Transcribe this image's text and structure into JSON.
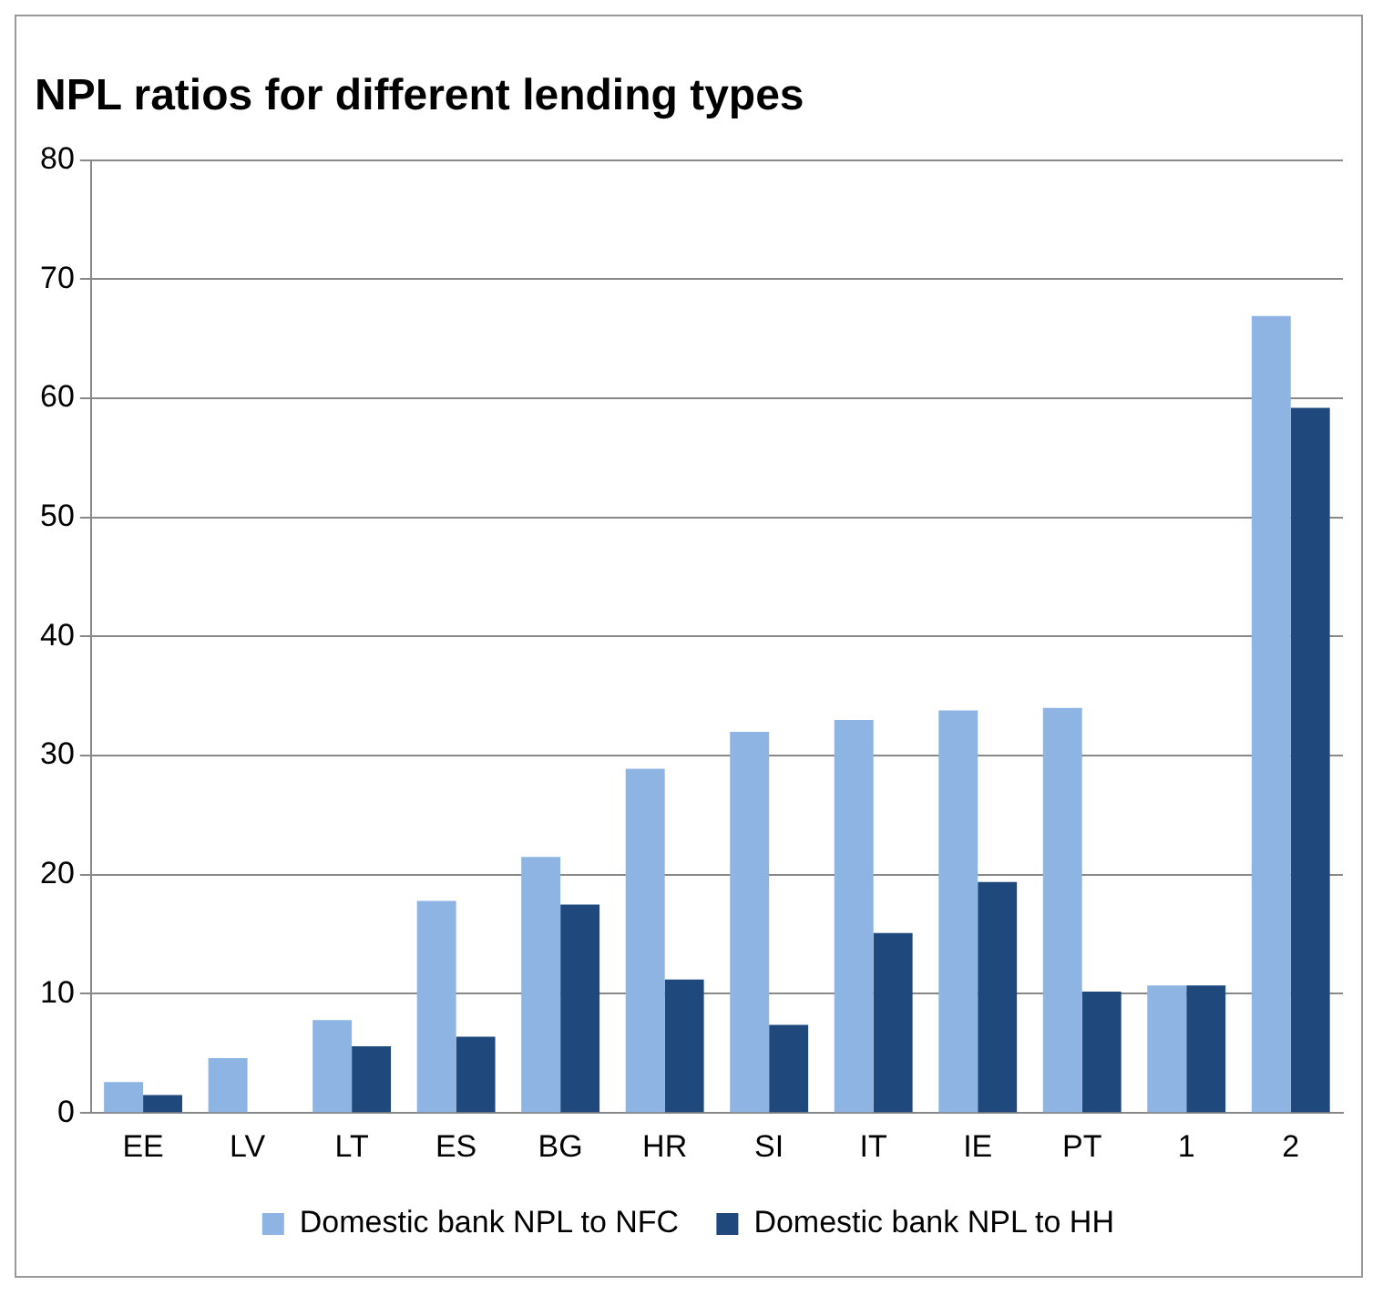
{
  "chart_data": {
    "type": "bar",
    "title": "NPL ratios for different lending types",
    "categories": [
      "EE",
      "LV",
      "LT",
      "ES",
      "BG",
      "HR",
      "SI",
      "IT",
      "IE",
      "PT",
      "1",
      "2"
    ],
    "series": [
      {
        "name": "Domestic bank NPL to NFC",
        "color": "#8db4e2",
        "values": [
          2.6,
          4.6,
          7.8,
          17.8,
          21.5,
          28.9,
          32,
          33,
          33.8,
          34,
          10.7,
          66.9
        ]
      },
      {
        "name": "Domestic bank NPL to HH",
        "color": "#1f497d",
        "values": [
          1.5,
          null,
          5.6,
          6.4,
          17.5,
          11.2,
          7.4,
          15.1,
          19.4,
          10.2,
          10.7,
          59.2
        ]
      }
    ],
    "ylim": [
      0,
      80
    ],
    "yticks": [
      0,
      10,
      20,
      30,
      40,
      50,
      60,
      70,
      80
    ],
    "grid": "y",
    "legend": "bottom"
  }
}
